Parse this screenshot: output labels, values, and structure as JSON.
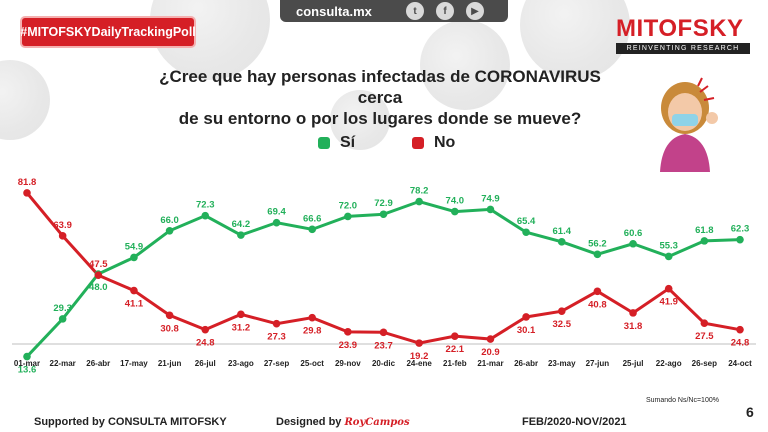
{
  "header": {
    "hashtag": "#MITOFSKYDailyTrackingPoll",
    "site": "consulta.mx",
    "social": [
      "twitter-icon",
      "facebook-icon",
      "youtube-icon"
    ],
    "brand_name": "MITOFSKY",
    "brand_tagline": "REINVENTING RESEARCH"
  },
  "question": {
    "line1": "¿Cree que hay personas infectadas de CORONAVIRUS cerca",
    "line2": "de su entorno o por los lugares donde se mueve?"
  },
  "colors": {
    "si": "#22b05a",
    "no": "#d51f26",
    "brand": "#d51f26"
  },
  "footer": {
    "note": "Sumando Ns/Nc=100%",
    "supported": "Supported by   CONSULTA   MITOFSKY",
    "designed": "Designed by",
    "designer": "RoyCampos",
    "period": "FEB/2020-NOV/2021",
    "page": "6"
  },
  "chart_data": {
    "type": "line",
    "categories": [
      "01-mar",
      "22-mar",
      "26-abr",
      "17-may",
      "21-jun",
      "26-jul",
      "23-ago",
      "27-sep",
      "25-oct",
      "29-nov",
      "20-dic",
      "24-ene",
      "21-feb",
      "21-mar",
      "26-abr",
      "23-may",
      "27-jun",
      "25-jul",
      "22-ago",
      "26-sep",
      "24-oct"
    ],
    "series": [
      {
        "name": "Sí",
        "color": "#22b05a",
        "values": [
          13.6,
          29.3,
          48.0,
          54.9,
          66.0,
          72.3,
          64.2,
          69.4,
          66.6,
          72.0,
          72.9,
          78.2,
          74.0,
          74.9,
          65.4,
          61.4,
          56.2,
          60.6,
          55.3,
          61.8,
          62.3
        ]
      },
      {
        "name": "No",
        "color": "#d51f26",
        "values": [
          81.8,
          63.9,
          47.5,
          41.1,
          30.8,
          24.8,
          31.2,
          27.3,
          29.8,
          23.9,
          23.7,
          19.2,
          22.1,
          20.9,
          30.1,
          32.5,
          40.8,
          31.8,
          41.9,
          27.5,
          24.8
        ]
      }
    ],
    "legend": "top-center",
    "grid": false
  }
}
